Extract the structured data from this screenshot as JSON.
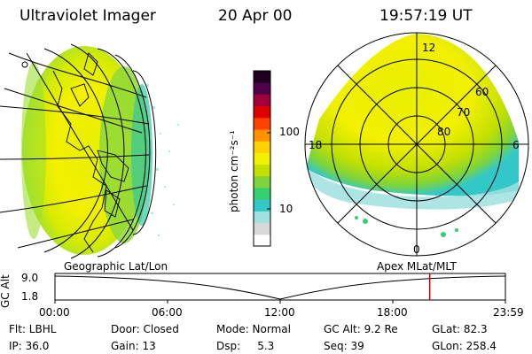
{
  "header": {
    "instrument": "Ultraviolet Imager",
    "date": "20 Apr 00",
    "time": "19:57:19 UT"
  },
  "colorbar": {
    "unit_label": "photon cm⁻²s⁻¹",
    "ticks": [
      "100",
      "10"
    ],
    "colors": [
      "#ffffff",
      "#d8d8d8",
      "#9fe0e0",
      "#33c8c8",
      "#33d070",
      "#7ed43a",
      "#c4e000",
      "#f0f000",
      "#ffd000",
      "#ff9000",
      "#ff4000",
      "#e00000",
      "#a0003a",
      "#50004a",
      "#200020"
    ]
  },
  "polar_plot": {
    "mlt_labels": [
      "12",
      "18",
      "6",
      "0"
    ],
    "lat_labels": [
      "60",
      "70",
      "80"
    ]
  },
  "altitude_panel": {
    "left_label": "Geographic Lat/Lon",
    "right_label": "Apex MLat/MLT",
    "y_axis_label": "GC Alt",
    "y_ticks": [
      "9.0",
      "1.8"
    ],
    "x_ticks": [
      "00:00",
      "06:00",
      "12:00",
      "18:00",
      "23:59"
    ],
    "current_time_fraction": 0.832
  },
  "info": {
    "row1": {
      "flt": "Flt: LBHL",
      "door": "Door: Closed",
      "mode": "Mode: Normal",
      "gcalt": "GC Alt: 9.2 Re",
      "glat": "GLat: 82.3"
    },
    "row2": {
      "ip": "IP: 36.0",
      "gain": "Gain: 13",
      "dsp": "Dsp:     5.3",
      "seq": "Seq: 39",
      "glon": "GLon: 258.4"
    }
  }
}
